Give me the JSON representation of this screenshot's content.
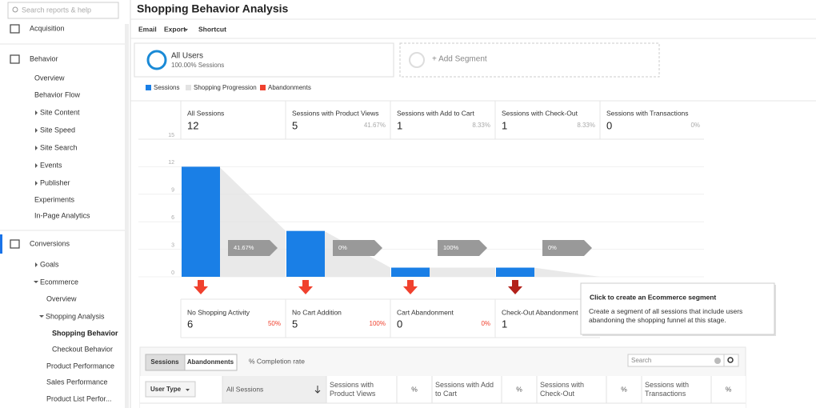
{
  "search_placeholder": "Search reports & help",
  "sidebar": [
    "Acquisition",
    "Behavior",
    "Overview",
    "Behavior Flow",
    "Site Content",
    "Site Speed",
    "Site Search",
    "Events",
    "Publisher",
    "Experiments",
    "In-Page Analytics",
    "Conversions",
    "Goals",
    "Ecommerce",
    "Overview",
    "Shopping Analysis",
    "Shopping Behavior",
    "Checkout Behavior",
    "Product Performance",
    "Sales Performance",
    "Product List Perfor..."
  ],
  "header": {
    "title": "Shopping Behavior Analysis",
    "actions": [
      "Email",
      "Export",
      "Shortcut"
    ]
  },
  "segments": {
    "active": "All Users",
    "active_detail": "100.00% Sessions",
    "add": "+ Add Segment"
  },
  "chart_data": {
    "type": "bar",
    "categories": [
      "All Sessions",
      "Sessions with Product Views",
      "Sessions with Add to Cart",
      "Sessions with Check-Out",
      "Sessions with Transactions"
    ],
    "series": [
      {
        "name": "Sessions",
        "color": "#1a7fe6",
        "values": [
          12,
          5,
          1,
          1,
          0
        ]
      },
      {
        "name": "Shopping Progression",
        "color": "#e3e3e3",
        "values": [
          null,
          41.67,
          8.33,
          8.33,
          0
        ],
        "value_labels": [
          null,
          "41.67%",
          "8.33%",
          "8.33%",
          "0%"
        ]
      },
      {
        "name": "Abandonments",
        "color": "#f0412e",
        "values": [
          6,
          5,
          0,
          1,
          null
        ]
      }
    ],
    "abandonment_labels": [
      "No Shopping Activity",
      "No Cart Addition",
      "Cart Abandonment",
      "Check-Out Abandonment",
      null
    ],
    "abandonment_rates": [
      "50%",
      "100%",
      "0%",
      null,
      null
    ],
    "progression_arrows": [
      "41.67%",
      "0%",
      "100%",
      "0%"
    ],
    "ylim": [
      0,
      15
    ],
    "yticks": [
      0,
      3,
      6,
      9,
      12,
      15
    ],
    "grid": true
  },
  "tooltip": {
    "title": "Click to create an Ecommerce segment",
    "text": "Create a segment of all sessions that include users abandoning the shopping funnel at this stage."
  },
  "table": {
    "tabs": [
      "Sessions",
      "Abandonments"
    ],
    "completion": "% Completion rate",
    "search": "Search",
    "dimension": "User Type",
    "columns": [
      "All Sessions",
      "Sessions with Product Views",
      "%",
      "Sessions with Add to Cart",
      "%",
      "Sessions with Check-Out",
      "%",
      "Sessions with Transactions",
      "%"
    ]
  }
}
